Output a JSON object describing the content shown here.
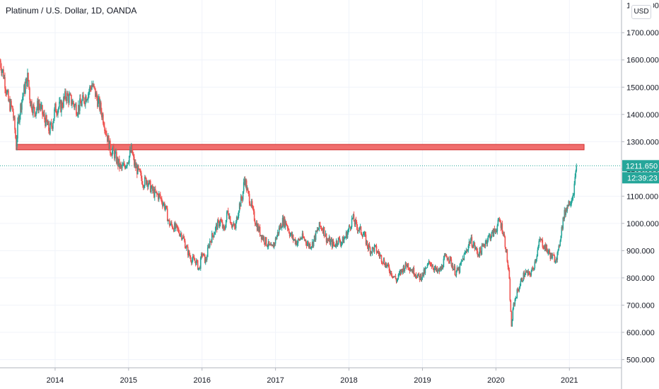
{
  "chart_data": {
    "type": "candlestick",
    "title": "Platinum / U.S. Dollar, 1D, OANDA",
    "unit_label": "USD",
    "ylim": [
      470,
      1820
    ],
    "y_ticks": [
      {
        "value": 500,
        "label": "500.000"
      },
      {
        "value": 600,
        "label": "600.000"
      },
      {
        "value": 700,
        "label": "700.000"
      },
      {
        "value": 800,
        "label": "800.000"
      },
      {
        "value": 900,
        "label": "900.000"
      },
      {
        "value": 1000,
        "label": "1000.000"
      },
      {
        "value": 1100,
        "label": "1100.000"
      },
      {
        "value": 1200,
        "label": "1200.000"
      },
      {
        "value": 1300,
        "label": "1300.000"
      },
      {
        "value": 1400,
        "label": "1400.000"
      },
      {
        "value": 1500,
        "label": "1500.000"
      },
      {
        "value": 1600,
        "label": "1600.000"
      },
      {
        "value": 1700,
        "label": "1700.000"
      }
    ],
    "top_partial_label": "1800.000",
    "x_start": 2013.25,
    "x_end": 2021.7,
    "x_ticks": [
      "2014",
      "2015",
      "2016",
      "2017",
      "2018",
      "2019",
      "2020",
      "2021"
    ],
    "last_price": 1211.65,
    "last_price_label": "1211.650",
    "countdown_label": "12:39:23",
    "resistance_zone": {
      "from_x": 2013.47,
      "to_x": 2021.2,
      "low": 1270,
      "high": 1290,
      "color": "#f06e6e",
      "border": "#d32f2f"
    },
    "up_color": "#26a69a",
    "down_color": "#ef5350",
    "price_line_color": "#26a69a",
    "closes": [
      [
        2013.25,
        1595
      ],
      [
        2013.3,
        1545
      ],
      [
        2013.33,
        1500
      ],
      [
        2013.37,
        1440
      ],
      [
        2013.42,
        1420
      ],
      [
        2013.45,
        1350
      ],
      [
        2013.47,
        1290
      ],
      [
        2013.5,
        1380
      ],
      [
        2013.55,
        1460
      ],
      [
        2013.6,
        1510
      ],
      [
        2013.63,
        1540
      ],
      [
        2013.66,
        1450
      ],
      [
        2013.72,
        1410
      ],
      [
        2013.78,
        1440
      ],
      [
        2013.83,
        1400
      ],
      [
        2013.88,
        1370
      ],
      [
        2013.92,
        1340
      ],
      [
        2013.96,
        1365
      ],
      [
        2014.0,
        1420
      ],
      [
        2014.08,
        1430
      ],
      [
        2014.15,
        1470
      ],
      [
        2014.22,
        1450
      ],
      [
        2014.3,
        1420
      ],
      [
        2014.38,
        1450
      ],
      [
        2014.45,
        1480
      ],
      [
        2014.5,
        1510
      ],
      [
        2014.53,
        1490
      ],
      [
        2014.58,
        1450
      ],
      [
        2014.62,
        1420
      ],
      [
        2014.66,
        1380
      ],
      [
        2014.7,
        1330
      ],
      [
        2014.75,
        1270
      ],
      [
        2014.8,
        1260
      ],
      [
        2014.85,
        1225
      ],
      [
        2014.9,
        1200
      ],
      [
        2014.95,
        1215
      ],
      [
        2015.0,
        1240
      ],
      [
        2015.04,
        1270
      ],
      [
        2015.08,
        1215
      ],
      [
        2015.15,
        1180
      ],
      [
        2015.2,
        1150
      ],
      [
        2015.25,
        1160
      ],
      [
        2015.3,
        1130
      ],
      [
        2015.35,
        1110
      ],
      [
        2015.42,
        1100
      ],
      [
        2015.5,
        1060
      ],
      [
        2015.55,
        1000
      ],
      [
        2015.6,
        990
      ],
      [
        2015.65,
        980
      ],
      [
        2015.72,
        960
      ],
      [
        2015.75,
        940
      ],
      [
        2015.8,
        900
      ],
      [
        2015.85,
        870
      ],
      [
        2015.92,
        860
      ],
      [
        2015.96,
        830
      ],
      [
        2016.0,
        890
      ],
      [
        2016.05,
        860
      ],
      [
        2016.1,
        930
      ],
      [
        2016.15,
        960
      ],
      [
        2016.2,
        990
      ],
      [
        2016.25,
        1010
      ],
      [
        2016.3,
        970
      ],
      [
        2016.35,
        1050
      ],
      [
        2016.4,
        1000
      ],
      [
        2016.45,
        980
      ],
      [
        2016.5,
        1060
      ],
      [
        2016.55,
        1100
      ],
      [
        2016.58,
        1170
      ],
      [
        2016.62,
        1110
      ],
      [
        2016.66,
        1080
      ],
      [
        2016.7,
        1030
      ],
      [
        2016.75,
        990
      ],
      [
        2016.8,
        960
      ],
      [
        2016.85,
        940
      ],
      [
        2016.9,
        920
      ],
      [
        2016.95,
        905
      ],
      [
        2017.0,
        940
      ],
      [
        2017.05,
        980
      ],
      [
        2017.1,
        1010
      ],
      [
        2017.15,
        1000
      ],
      [
        2017.2,
        960
      ],
      [
        2017.25,
        940
      ],
      [
        2017.3,
        930
      ],
      [
        2017.35,
        950
      ],
      [
        2017.4,
        940
      ],
      [
        2017.45,
        920
      ],
      [
        2017.5,
        925
      ],
      [
        2017.55,
        960
      ],
      [
        2017.6,
        990
      ],
      [
        2017.65,
        980
      ],
      [
        2017.7,
        940
      ],
      [
        2017.75,
        930
      ],
      [
        2017.8,
        920
      ],
      [
        2017.85,
        940
      ],
      [
        2017.9,
        930
      ],
      [
        2017.95,
        950
      ],
      [
        2018.0,
        980
      ],
      [
        2018.05,
        1020
      ],
      [
        2018.1,
        990
      ],
      [
        2018.15,
        975
      ],
      [
        2018.2,
        960
      ],
      [
        2018.25,
        920
      ],
      [
        2018.3,
        900
      ],
      [
        2018.35,
        910
      ],
      [
        2018.4,
        890
      ],
      [
        2018.45,
        870
      ],
      [
        2018.5,
        850
      ],
      [
        2018.55,
        830
      ],
      [
        2018.6,
        810
      ],
      [
        2018.65,
        790
      ],
      [
        2018.7,
        820
      ],
      [
        2018.75,
        840
      ],
      [
        2018.8,
        850
      ],
      [
        2018.85,
        830
      ],
      [
        2018.9,
        820
      ],
      [
        2018.95,
        800
      ],
      [
        2019.0,
        810
      ],
      [
        2019.05,
        830
      ],
      [
        2019.1,
        860
      ],
      [
        2019.15,
        840
      ],
      [
        2019.2,
        820
      ],
      [
        2019.25,
        830
      ],
      [
        2019.3,
        870
      ],
      [
        2019.35,
        880
      ],
      [
        2019.4,
        850
      ],
      [
        2019.45,
        820
      ],
      [
        2019.5,
        830
      ],
      [
        2019.55,
        870
      ],
      [
        2019.6,
        900
      ],
      [
        2019.65,
        940
      ],
      [
        2019.7,
        920
      ],
      [
        2019.75,
        890
      ],
      [
        2019.8,
        900
      ],
      [
        2019.85,
        930
      ],
      [
        2019.9,
        950
      ],
      [
        2019.95,
        960
      ],
      [
        2020.0,
        980
      ],
      [
        2020.05,
        1010
      ],
      [
        2020.1,
        970
      ],
      [
        2020.14,
        900
      ],
      [
        2020.18,
        800
      ],
      [
        2020.21,
        620
      ],
      [
        2020.24,
        700
      ],
      [
        2020.28,
        740
      ],
      [
        2020.32,
        770
      ],
      [
        2020.36,
        800
      ],
      [
        2020.4,
        820
      ],
      [
        2020.45,
        810
      ],
      [
        2020.5,
        830
      ],
      [
        2020.55,
        880
      ],
      [
        2020.6,
        940
      ],
      [
        2020.65,
        920
      ],
      [
        2020.7,
        900
      ],
      [
        2020.75,
        880
      ],
      [
        2020.8,
        870
      ],
      [
        2020.85,
        890
      ],
      [
        2020.88,
        960
      ],
      [
        2020.92,
        1020
      ],
      [
        2020.96,
        1060
      ],
      [
        2021.0,
        1080
      ],
      [
        2021.04,
        1100
      ],
      [
        2021.07,
        1140
      ],
      [
        2021.1,
        1211.65
      ]
    ]
  }
}
